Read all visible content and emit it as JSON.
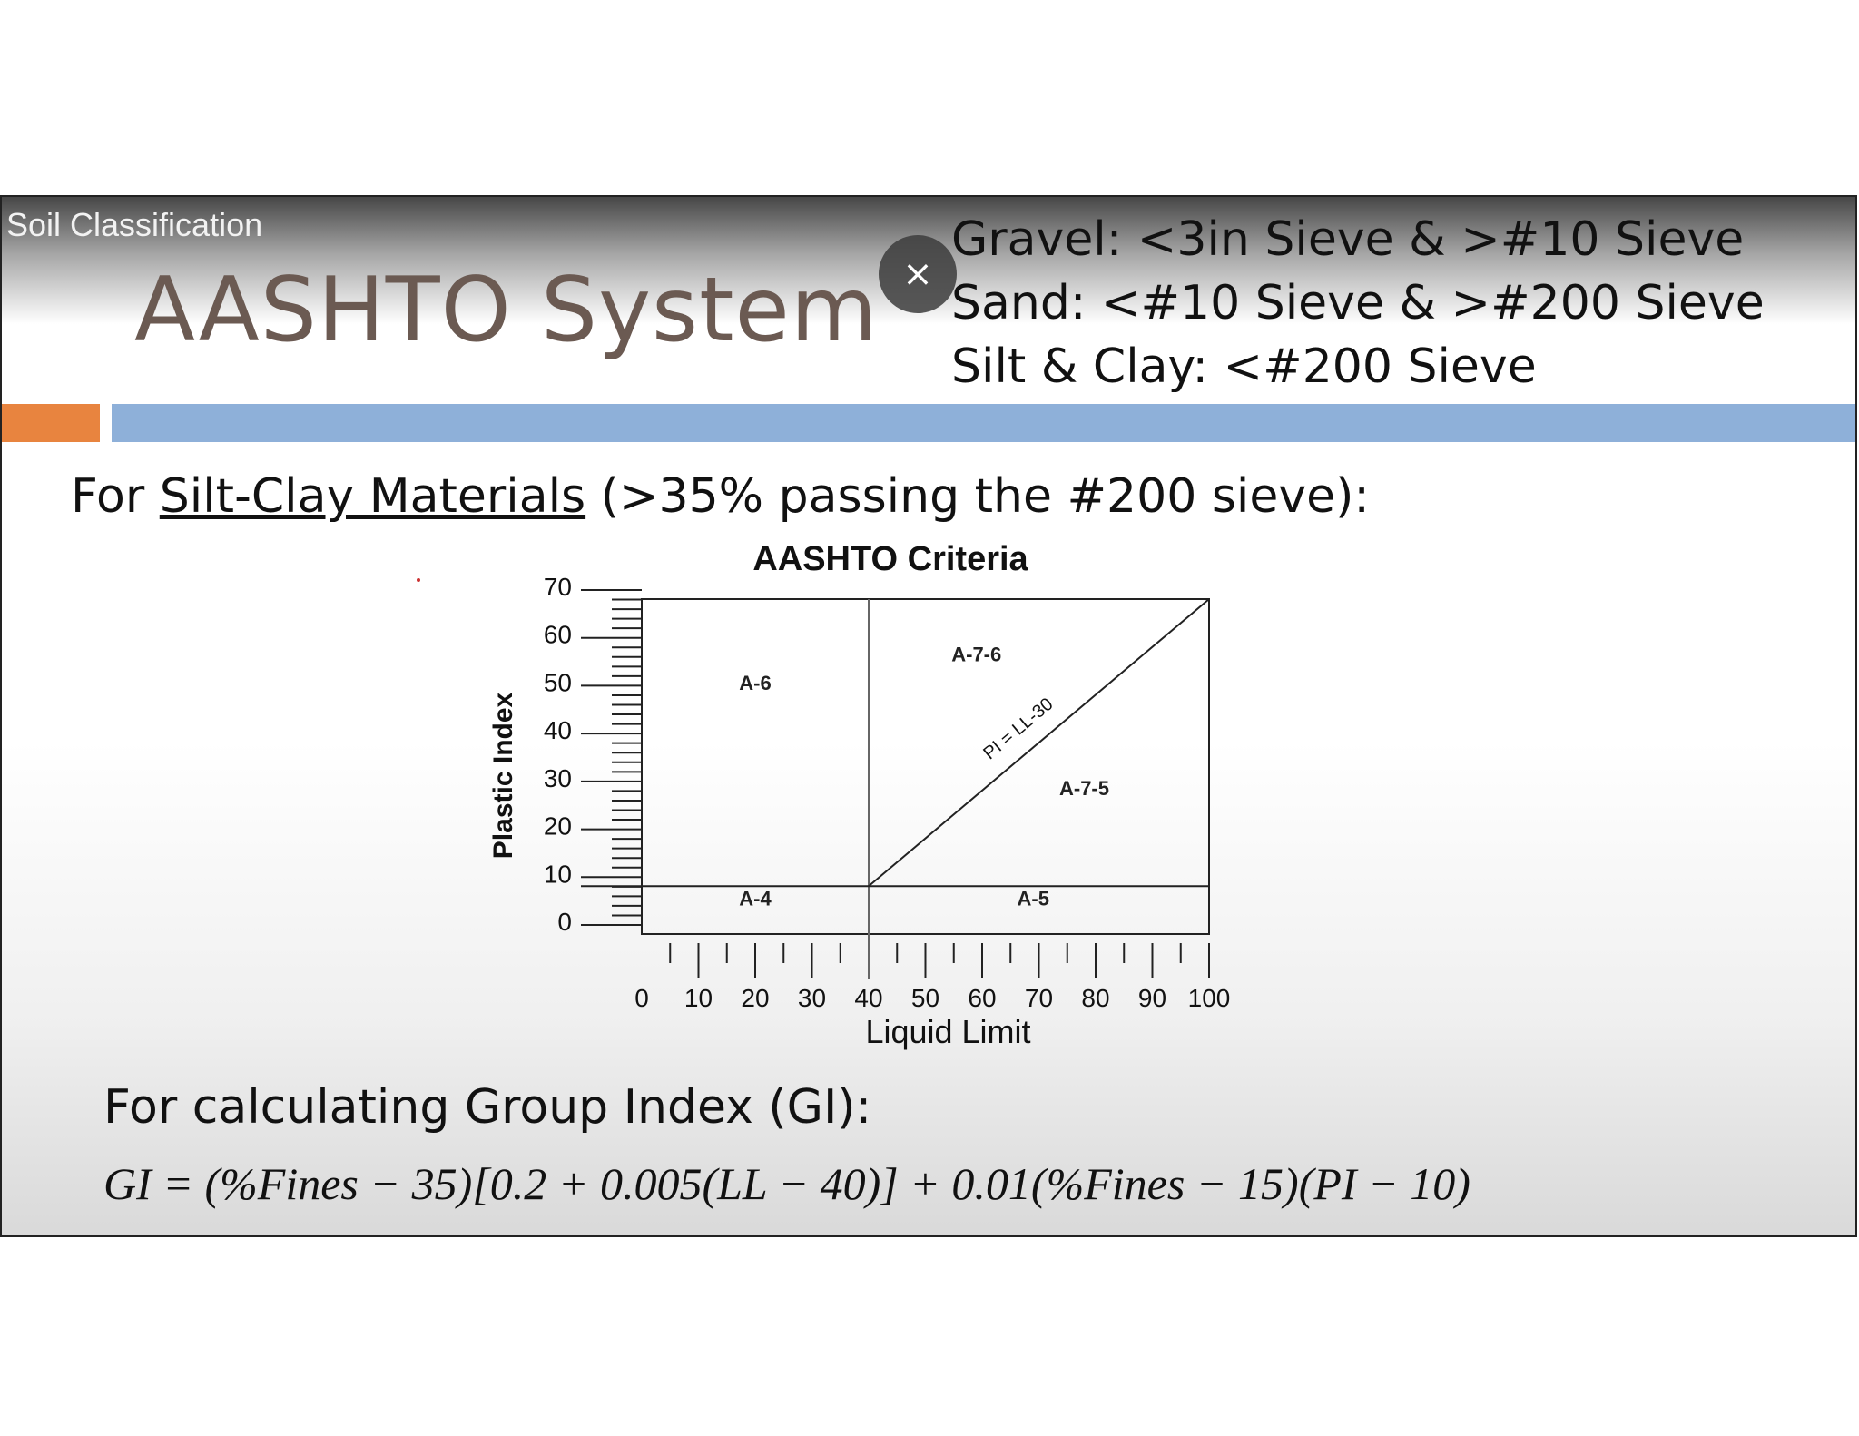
{
  "video": {
    "title": "Soil Classification",
    "close_icon": "close-icon",
    "close_glyph": "×"
  },
  "slide": {
    "title": "AASHTO System",
    "sieve_lines": [
      "Gravel: <3in Sieve & >#10 Sieve",
      "Sand: <#10 Sieve & >#200 Sieve",
      "Silt & Clay: <#200 Sieve"
    ],
    "intro_prefix": "For ",
    "intro_underlined": "Silt-Clay Materials",
    "intro_suffix": " (>35% passing the #200 sieve):",
    "gi_heading": "For calculating Group Index (GI):",
    "gi_formula": "GI = (%Fines − 35)[0.2 + 0.005(LL − 40)] + 0.01(%Fines − 15)(PI − 10)",
    "accent_colors": {
      "orange": "#e8843f",
      "blue": "#8eb0d9",
      "title": "#6b5a52"
    }
  },
  "chart_data": {
    "type": "region-plot",
    "title": "AASHTO Criteria",
    "xlabel": "Liquid Limit",
    "ylabel": "Plastic Index",
    "xlim": [
      0,
      100
    ],
    "ylim": [
      0,
      70
    ],
    "x_ticks": [
      "0",
      "10",
      "20",
      "30",
      "40",
      "50",
      "60",
      "70",
      "80",
      "90",
      "100"
    ],
    "y_ticks": [
      "0",
      "10",
      "20",
      "30",
      "40",
      "50",
      "60",
      "70"
    ],
    "boundaries": [
      {
        "type": "vertical",
        "x": 40,
        "y_from": 0,
        "y_to": 70
      },
      {
        "type": "horizontal",
        "y": 10,
        "x_from": 0,
        "x_to": 100
      },
      {
        "type": "line",
        "label": "PI = LL-30",
        "from": [
          40,
          10
        ],
        "to": [
          100,
          70
        ]
      }
    ],
    "regions": [
      {
        "label": "A-6",
        "x": 20,
        "y": 51
      },
      {
        "label": "A-7-6",
        "x": 59,
        "y": 57
      },
      {
        "label": "A-7-5",
        "x": 78,
        "y": 29
      },
      {
        "label": "A-4",
        "x": 20,
        "y": 6
      },
      {
        "label": "A-5",
        "x": 69,
        "y": 6
      }
    ],
    "line_label": "PI = LL-30",
    "grid": false
  }
}
